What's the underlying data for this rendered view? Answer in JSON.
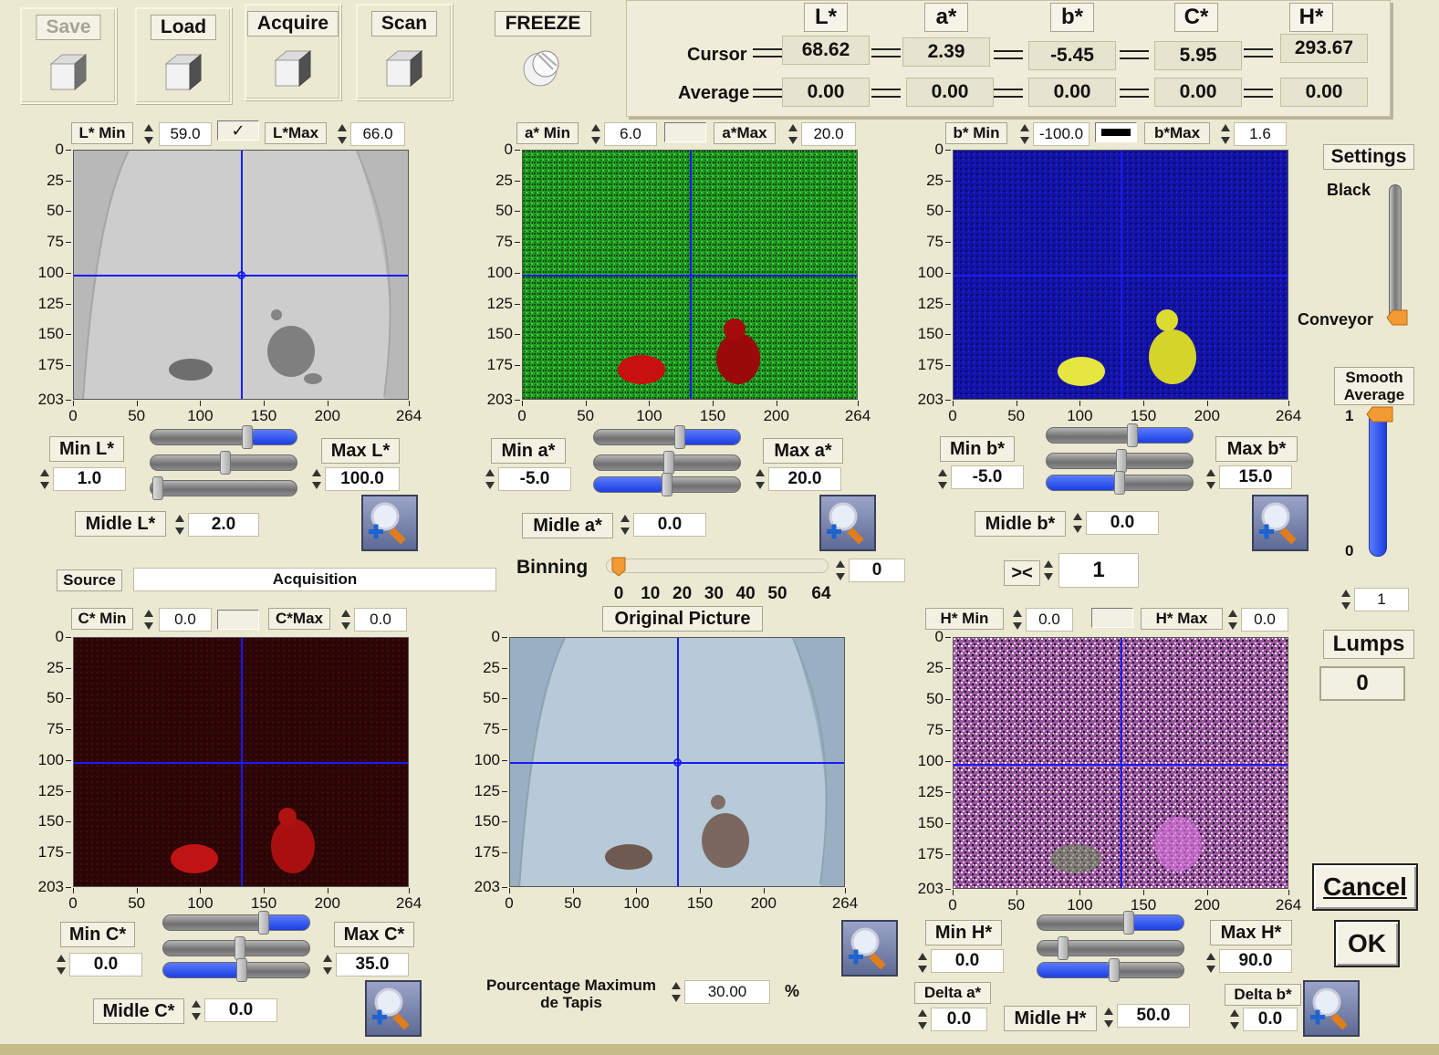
{
  "toolbar": {
    "save": "Save",
    "load": "Load",
    "acquire": "Acquire",
    "scan": "Scan",
    "freeze": "FREEZE"
  },
  "readout": {
    "headers": [
      "L*",
      "a*",
      "b*",
      "C*",
      "H*"
    ],
    "cursor_label": "Cursor",
    "average_label": "Average",
    "cursor": [
      "68.62",
      "2.39",
      "-5.45",
      "5.95",
      "293.67"
    ],
    "average": [
      "0.00",
      "0.00",
      "0.00",
      "0.00",
      "0.00"
    ]
  },
  "axis": {
    "y": [
      "0",
      "25",
      "50",
      "75",
      "100",
      "125",
      "150",
      "175",
      "203"
    ],
    "x": [
      "0",
      "50",
      "100",
      "150",
      "200",
      "264"
    ]
  },
  "lplot": {
    "min_label": "L* Min",
    "min_value": "59.0",
    "max_label": "L*Max",
    "max_value": "66.0",
    "check": "✓",
    "min_btn": "Min L*",
    "min_field": "1.0",
    "max_btn": "Max L*",
    "max_field": "100.0",
    "mid_btn": "Midle L*",
    "mid_field": "2.0"
  },
  "aplot": {
    "min_label": "a* Min",
    "min_value": "6.0",
    "max_label": "a*Max",
    "max_value": "20.0",
    "min_btn": "Min a*",
    "min_field": "-5.0",
    "max_btn": "Max a*",
    "max_field": "20.0",
    "mid_btn": "Midle a*",
    "mid_field": "0.0"
  },
  "bplot": {
    "min_label": "b* Min",
    "min_value": "-100.0",
    "max_label": "b*Max",
    "max_value": "1.6",
    "min_btn": "Min b*",
    "min_field": "-5.0",
    "max_btn": "Max b*",
    "max_field": "15.0",
    "mid_btn": "Midle b*",
    "mid_field": "0.0"
  },
  "cplot": {
    "min_label": "C* Min",
    "min_value": "0.0",
    "max_label": "C*Max",
    "max_value": "0.0",
    "min_btn": "Min C*",
    "min_field": "0.0",
    "max_btn": "Max C*",
    "max_field": "35.0",
    "mid_btn": "Midle C*",
    "mid_field": "0.0"
  },
  "hplot": {
    "min_label": "H*  Min",
    "min_value": "0.0",
    "max_label": "H*  Max",
    "max_value": "0.0",
    "min_btn": "Min H*",
    "min_field": "0.0",
    "max_btn": "Max H*",
    "max_field": "90.0",
    "mid_btn": "Midle H*",
    "mid_field": "50.0",
    "delta_a_label": "Delta a*",
    "delta_a": "0.0",
    "delta_b_label": "Delta b*",
    "delta_b": "0.0"
  },
  "original": {
    "title": "Original Picture"
  },
  "source": {
    "label": "Source",
    "value": "Acquisition"
  },
  "binning": {
    "label": "Binning",
    "value": "0",
    "ticks": [
      "0",
      "10",
      "20",
      "30",
      "40",
      "50",
      "64"
    ]
  },
  "swap": {
    "label": "><",
    "value": "1"
  },
  "pourcentage": {
    "label_line1": "Pourcentage Maximum",
    "label_line2": "de Tapis",
    "value": "30.00",
    "unit": "%"
  },
  "settings": {
    "title": "Settings",
    "black": "Black",
    "conveyor": "Conveyor"
  },
  "smooth": {
    "line1": "Smooth",
    "line2": "Average",
    "max": "1",
    "min": "0",
    "value": "1"
  },
  "lumps": {
    "label": "Lumps",
    "value": "0"
  },
  "actions": {
    "cancel": "Cancel",
    "ok": "OK"
  }
}
